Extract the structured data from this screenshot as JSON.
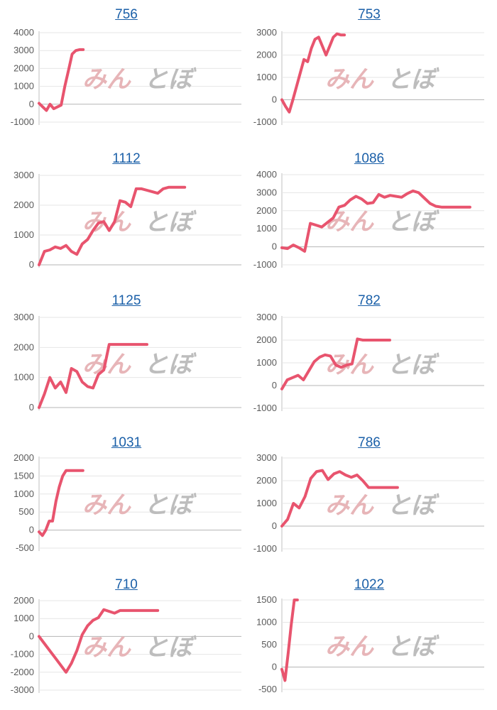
{
  "watermark": {
    "left": "みん",
    "right": "とぼ",
    "left_color": "#e7b5b8",
    "right_color": "#bdbdbd"
  },
  "line_color": "#e8546e",
  "chart_data": [
    {
      "type": "line",
      "title": "756",
      "yticks": [
        4000,
        3000,
        2000,
        1000,
        0,
        -1000
      ],
      "ylim": [
        -1000,
        4000
      ],
      "x": [
        0,
        1,
        2,
        3,
        4,
        5,
        6,
        7,
        8,
        9,
        10,
        11,
        12
      ],
      "xlim": [
        0,
        55
      ],
      "y": [
        50,
        -150,
        -350,
        0,
        -250,
        -150,
        -50,
        1000,
        1900,
        2800,
        3000,
        3050,
        3050
      ]
    },
    {
      "type": "line",
      "title": "753",
      "yticks": [
        3000,
        2000,
        1000,
        0,
        -1000
      ],
      "ylim": [
        -1000,
        3000
      ],
      "x": [
        0,
        1,
        2,
        3,
        4,
        5,
        6,
        7,
        8,
        9,
        10,
        11,
        12,
        13,
        14,
        15,
        16,
        17
      ],
      "xlim": [
        0,
        55
      ],
      "y": [
        0,
        -300,
        -550,
        0,
        600,
        1200,
        1800,
        1700,
        2300,
        2700,
        2800,
        2400,
        2000,
        2400,
        2800,
        2950,
        2900,
        2900
      ]
    },
    {
      "type": "line",
      "title": "1112",
      "yticks": [
        3000,
        2000,
        1000,
        0
      ],
      "ylim": [
        0,
        3000
      ],
      "x": [
        0,
        2,
        4,
        6,
        8,
        10,
        12,
        14,
        16,
        18,
        20,
        22,
        24,
        26,
        28,
        30,
        32,
        34,
        36,
        38,
        40,
        42,
        44,
        46,
        48,
        50,
        52,
        54
      ],
      "xlim": [
        0,
        75
      ],
      "y": [
        0,
        450,
        500,
        600,
        550,
        650,
        450,
        350,
        700,
        850,
        1150,
        1400,
        1450,
        1150,
        1450,
        2150,
        2100,
        1950,
        2550,
        2550,
        2500,
        2450,
        2400,
        2550,
        2600,
        2600,
        2600,
        2600
      ]
    },
    {
      "type": "line",
      "title": "1086",
      "yticks": [
        4000,
        3000,
        2000,
        1000,
        0,
        -1000
      ],
      "ylim": [
        -1000,
        4000
      ],
      "x": [
        0,
        2,
        4,
        6,
        8,
        10,
        12,
        14,
        16,
        18,
        20,
        22,
        24,
        26,
        28,
        30,
        32,
        34,
        36,
        38,
        40,
        42,
        44,
        46,
        48,
        50,
        52,
        54,
        56,
        58,
        60,
        62,
        64,
        66
      ],
      "xlim": [
        0,
        71
      ],
      "y": [
        -50,
        -100,
        100,
        -50,
        -250,
        1300,
        1200,
        1100,
        1350,
        1600,
        2200,
        2300,
        2600,
        2800,
        2650,
        2400,
        2450,
        2900,
        2750,
        2850,
        2800,
        2750,
        2950,
        3100,
        3000,
        2700,
        2400,
        2250,
        2200,
        2200,
        2200,
        2200,
        2200,
        2200
      ]
    },
    {
      "type": "line",
      "title": "1125",
      "yticks": [
        3000,
        2000,
        1000,
        0
      ],
      "ylim": [
        0,
        3000
      ],
      "x": [
        0,
        2,
        4,
        6,
        8,
        10,
        12,
        14,
        16,
        18,
        20,
        22,
        24,
        26,
        28,
        30,
        32,
        34,
        36,
        38,
        40
      ],
      "xlim": [
        0,
        75
      ],
      "y": [
        0,
        450,
        1000,
        650,
        850,
        500,
        1300,
        1200,
        850,
        700,
        650,
        1100,
        1250,
        2100,
        2100,
        2100,
        2100,
        2100,
        2100,
        2100,
        2100
      ]
    },
    {
      "type": "line",
      "title": "782",
      "yticks": [
        3000,
        2000,
        1000,
        0,
        -1000
      ],
      "ylim": [
        -1000,
        3000
      ],
      "x": [
        0,
        2,
        4,
        6,
        8,
        10,
        12,
        14,
        16,
        18,
        20,
        22,
        24,
        26,
        28,
        30,
        32,
        34,
        36,
        38,
        40
      ],
      "xlim": [
        0,
        75
      ],
      "y": [
        -150,
        250,
        350,
        450,
        250,
        650,
        1050,
        1250,
        1350,
        1300,
        900,
        800,
        900,
        950,
        2050,
        2000,
        2000,
        2000,
        2000,
        2000,
        2000
      ]
    },
    {
      "type": "line",
      "title": "1031",
      "yticks": [
        2000,
        1500,
        1000,
        500,
        0,
        -500
      ],
      "ylim": [
        -500,
        2000
      ],
      "x": [
        0,
        1,
        2,
        3,
        4,
        5,
        6,
        7,
        8,
        9,
        10,
        11,
        12,
        13
      ],
      "xlim": [
        0,
        60
      ],
      "y": [
        -50,
        -150,
        0,
        250,
        250,
        800,
        1200,
        1500,
        1650,
        1650,
        1650,
        1650,
        1650,
        1650
      ]
    },
    {
      "type": "line",
      "title": "786",
      "yticks": [
        3000,
        2000,
        1000,
        0,
        -1000
      ],
      "ylim": [
        -1000,
        3000
      ],
      "x": [
        0,
        2,
        4,
        6,
        8,
        10,
        12,
        14,
        16,
        18,
        20,
        22,
        24,
        26,
        28,
        30,
        32,
        34,
        36,
        38,
        40
      ],
      "xlim": [
        0,
        70
      ],
      "y": [
        0,
        300,
        1000,
        800,
        1300,
        2100,
        2400,
        2450,
        2050,
        2300,
        2400,
        2250,
        2150,
        2250,
        2000,
        1700,
        1700,
        1700,
        1700,
        1700,
        1700
      ]
    },
    {
      "type": "line",
      "title": "710",
      "yticks": [
        2000,
        1000,
        0,
        -1000,
        -2000,
        -3000
      ],
      "ylim": [
        -3000,
        2000
      ],
      "x": [
        0,
        2,
        4,
        6,
        8,
        10,
        12,
        14,
        16,
        18,
        20,
        22,
        24,
        26,
        28,
        30,
        32,
        34,
        36,
        38,
        40,
        42,
        44
      ],
      "xlim": [
        0,
        75
      ],
      "y": [
        0,
        -400,
        -800,
        -1200,
        -1600,
        -2000,
        -1500,
        -800,
        100,
        600,
        900,
        1050,
        1500,
        1400,
        1300,
        1450,
        1450,
        1450,
        1450,
        1450,
        1450,
        1450,
        1450
      ]
    },
    {
      "type": "line",
      "title": "1022",
      "yticks": [
        1500,
        1000,
        500,
        0,
        -500
      ],
      "ylim": [
        -500,
        1500
      ],
      "x": [
        0,
        1,
        2,
        3,
        4,
        5
      ],
      "xlim": [
        0,
        65
      ],
      "y": [
        -50,
        -300,
        300,
        950,
        1500,
        1500
      ]
    }
  ]
}
